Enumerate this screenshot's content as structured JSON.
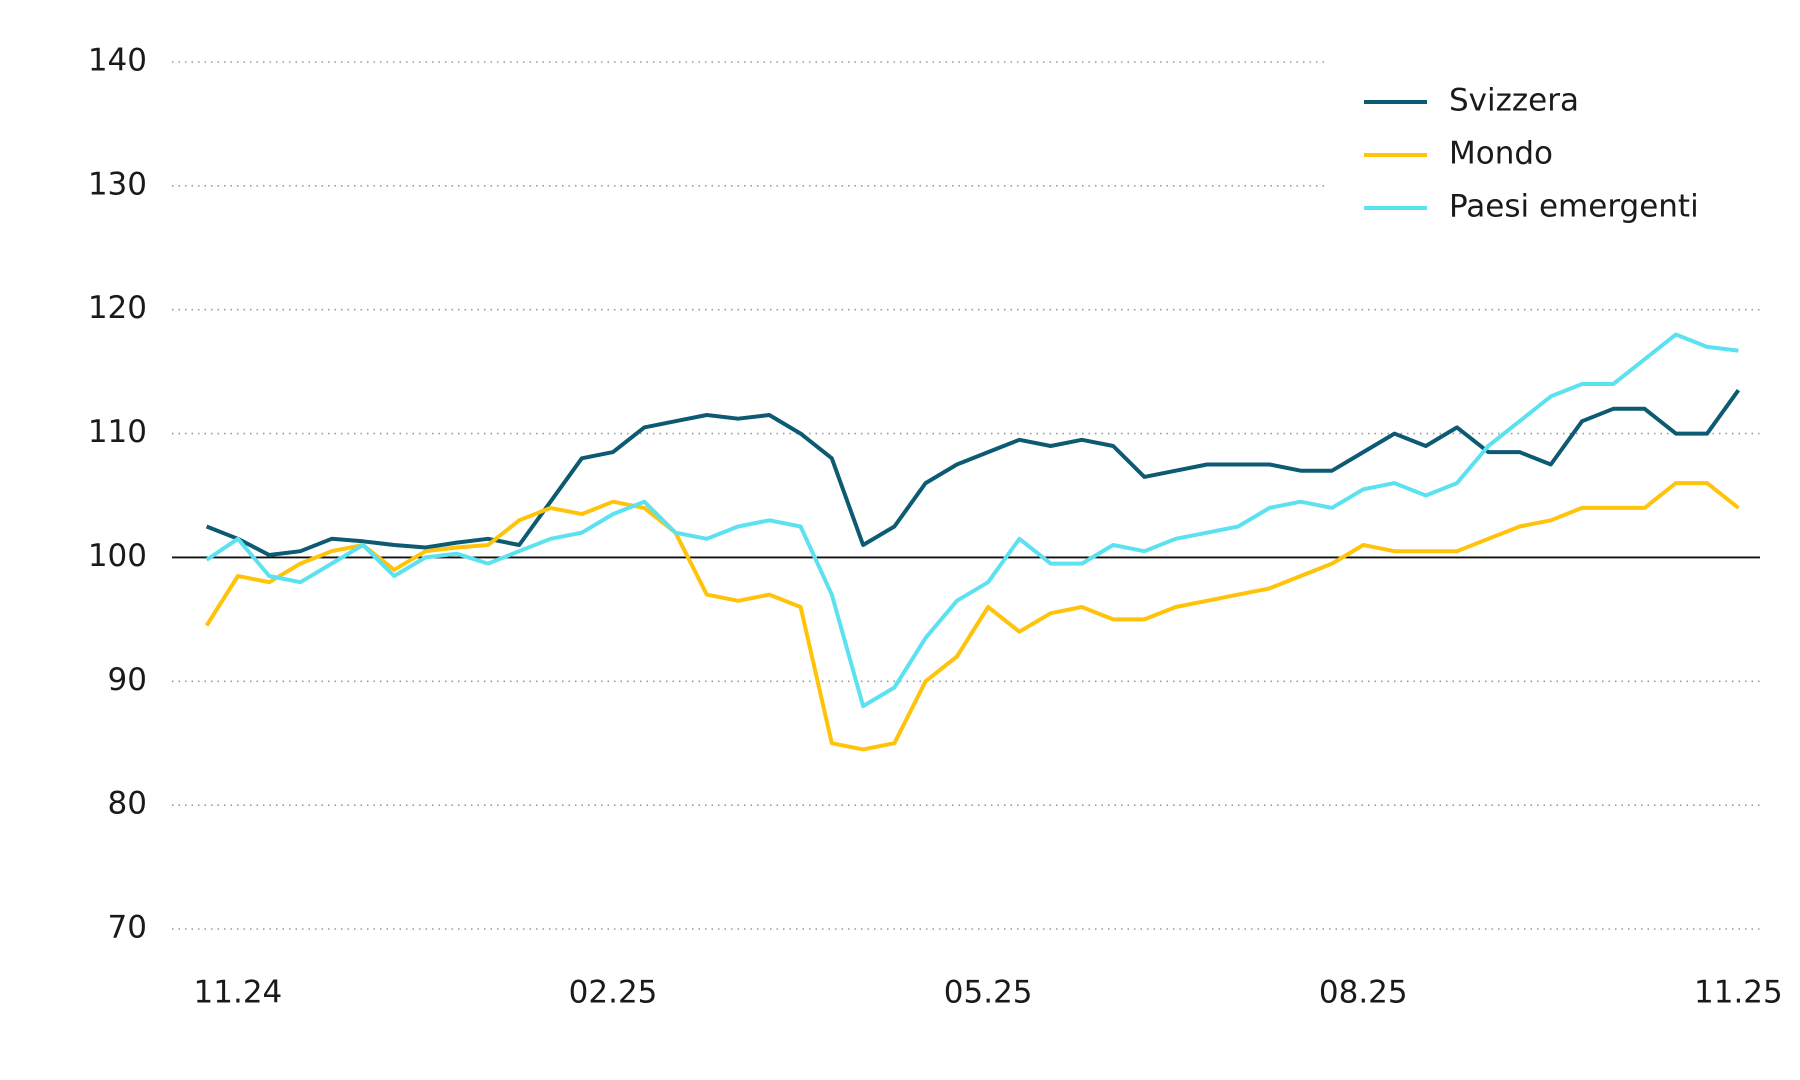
{
  "chart_data": {
    "type": "line",
    "x": [
      null,
      "11.24",
      null,
      null,
      null,
      null,
      null,
      null,
      null,
      null,
      null,
      null,
      null,
      "02.25",
      null,
      null,
      null,
      null,
      null,
      null,
      null,
      null,
      null,
      null,
      null,
      "05.25",
      null,
      null,
      null,
      null,
      null,
      null,
      null,
      null,
      null,
      null,
      null,
      "08.25",
      null,
      null,
      null,
      null,
      null,
      null,
      null,
      null,
      null,
      null,
      null,
      "11.25"
    ],
    "series": [
      {
        "name": "Svizzera",
        "color": "#0d5a73",
        "values": [
          102.5,
          101.5,
          100.2,
          100.5,
          101.5,
          101.3,
          101,
          100.8,
          101.2,
          101.5,
          101,
          104.5,
          108,
          108.5,
          110.5,
          111,
          111.5,
          111.2,
          111.5,
          110,
          108,
          101,
          102.5,
          106,
          107.5,
          108.5,
          109.5,
          109,
          109.5,
          109,
          106.5,
          107,
          107.5,
          107.5,
          107.5,
          107,
          107,
          108.5,
          110,
          109,
          110.5,
          108.5,
          108.5,
          107.5,
          111,
          112,
          112,
          110,
          110,
          113.5
        ]
      },
      {
        "name": "Mondo",
        "color": "#ffc30a",
        "values": [
          94.5,
          98.5,
          98,
          99.5,
          100.5,
          101,
          99,
          100.5,
          100.8,
          101,
          103,
          104,
          103.5,
          104.5,
          104,
          102,
          97,
          96.5,
          97,
          96,
          85,
          84.5,
          85,
          90,
          92,
          96,
          94,
          95.5,
          96,
          95,
          95,
          96,
          96.5,
          97,
          97.5,
          98.5,
          99.5,
          101,
          100.5,
          100.5,
          100.5,
          101.5,
          102.5,
          103,
          104,
          104,
          104,
          106,
          106,
          104
        ]
      },
      {
        "name": "Paesi emergenti",
        "color": "#5ce1f0",
        "values": [
          99.8,
          101.5,
          98.5,
          98,
          99.5,
          101,
          98.5,
          100,
          100.3,
          99.5,
          100.5,
          101.5,
          102,
          103.5,
          104.5,
          102,
          101.5,
          102.5,
          103,
          102.5,
          97,
          88,
          89.5,
          93.5,
          96.5,
          98,
          101.5,
          99.5,
          99.5,
          101,
          100.5,
          101.5,
          102,
          102.5,
          104,
          104.5,
          104,
          105.5,
          106,
          105,
          106,
          109,
          111,
          113,
          114,
          114,
          116,
          118,
          117,
          116.7
        ]
      }
    ],
    "ylim": [
      70,
      140
    ],
    "yticks": [
      70,
      80,
      90,
      100,
      110,
      120,
      130,
      140
    ],
    "reference_line": 100,
    "grid": true,
    "legend": "top-right"
  }
}
